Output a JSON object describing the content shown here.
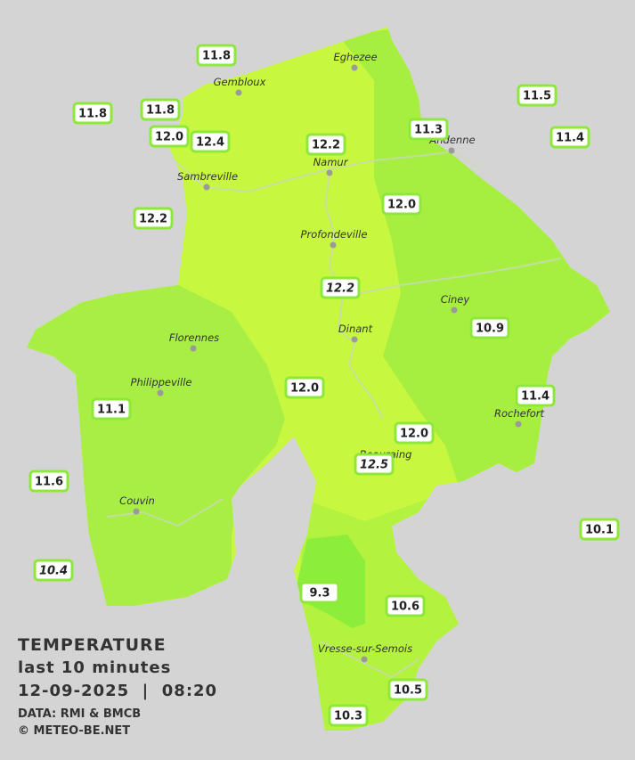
{
  "stations": [
    {
      "label": "11.8"
    },
    {
      "label": "11.8"
    },
    {
      "label": "11.8"
    },
    {
      "label": "12.0"
    },
    {
      "label": "12.4"
    },
    {
      "label": "12.2"
    },
    {
      "label": "11.3"
    },
    {
      "label": "11.5"
    },
    {
      "label": "11.4"
    },
    {
      "label": "12.0"
    },
    {
      "label": "12.2"
    },
    {
      "label": "12.2",
      "italic": true
    },
    {
      "label": "10.9"
    },
    {
      "label": "12.0"
    },
    {
      "label": "11.4"
    },
    {
      "label": "11.1"
    },
    {
      "label": "12.0"
    },
    {
      "label": "12.5",
      "italic": true
    },
    {
      "label": "11.6"
    },
    {
      "label": "10.1"
    },
    {
      "label": "10.4",
      "italic": true
    },
    {
      "label": "9.3"
    },
    {
      "label": "10.6"
    },
    {
      "label": "10.5"
    },
    {
      "label": "10.3"
    }
  ],
  "cities": [
    "Eghezee",
    "Gembloux",
    "Andenne",
    "Namur",
    "Sambreville",
    "Profondeville",
    "Ciney",
    "Dinant",
    "Florennes",
    "Philippeville",
    "Rochefort",
    "Beauraing",
    "Couvin",
    "Vresse-sur-Semois"
  ],
  "caption": {
    "title": "TEMPERATURE",
    "subtitle": "last 10 minutes",
    "datetime": "12-09-2025  |  08:20",
    "data": "DATA: RMI & BMCB",
    "copyright": "© METEO-BE.NET"
  }
}
